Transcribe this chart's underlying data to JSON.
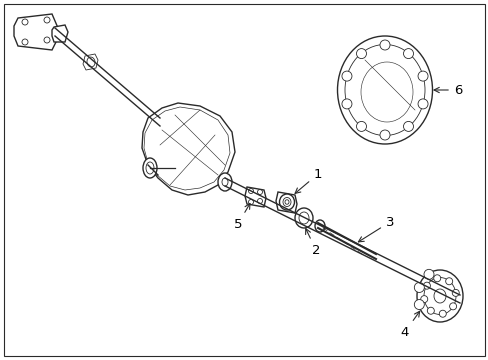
{
  "background_color": "#ffffff",
  "line_color": "#2a2a2a",
  "lw": 1.0,
  "tlw": 0.6,
  "fig_width": 4.89,
  "fig_height": 3.6,
  "dpi": 100
}
